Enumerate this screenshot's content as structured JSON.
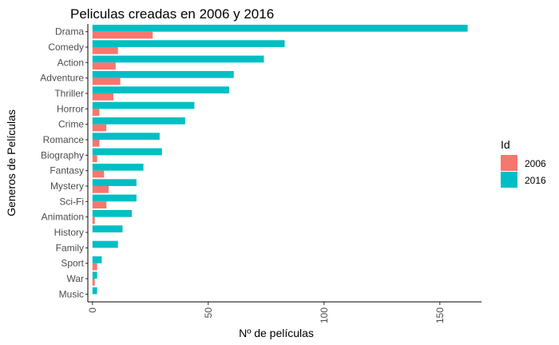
{
  "chart_data": {
    "type": "bar",
    "orientation": "horizontal",
    "title": "Peliculas creadas en 2006 y 2016",
    "xlabel": "Nº de películas",
    "ylabel": "Generos de Películas",
    "categories": [
      "Drama",
      "Comedy",
      "Action",
      "Adventure",
      "Thriller",
      "Horror",
      "Crime",
      "Romance",
      "Biography",
      "Fantasy",
      "Mystery",
      "Sci-Fi",
      "Animation",
      "History",
      "Family",
      "Sport",
      "War",
      "Music"
    ],
    "series": [
      {
        "name": "2006",
        "color": "#F8766D",
        "values": [
          26,
          11,
          10,
          12,
          9,
          3,
          6,
          3,
          2,
          5,
          7,
          6,
          1,
          0,
          0,
          2,
          1,
          0
        ]
      },
      {
        "name": "2016",
        "color": "#00BFC4",
        "values": [
          162,
          83,
          74,
          61,
          59,
          44,
          40,
          29,
          30,
          22,
          19,
          19,
          17,
          13,
          11,
          4,
          2,
          2
        ]
      }
    ],
    "xlim": [
      -2,
      168
    ],
    "xticks": [
      0,
      50,
      100,
      150
    ],
    "grid": false,
    "legend": {
      "title": "Id",
      "position": "right",
      "entries": [
        "2006",
        "2016"
      ]
    }
  }
}
